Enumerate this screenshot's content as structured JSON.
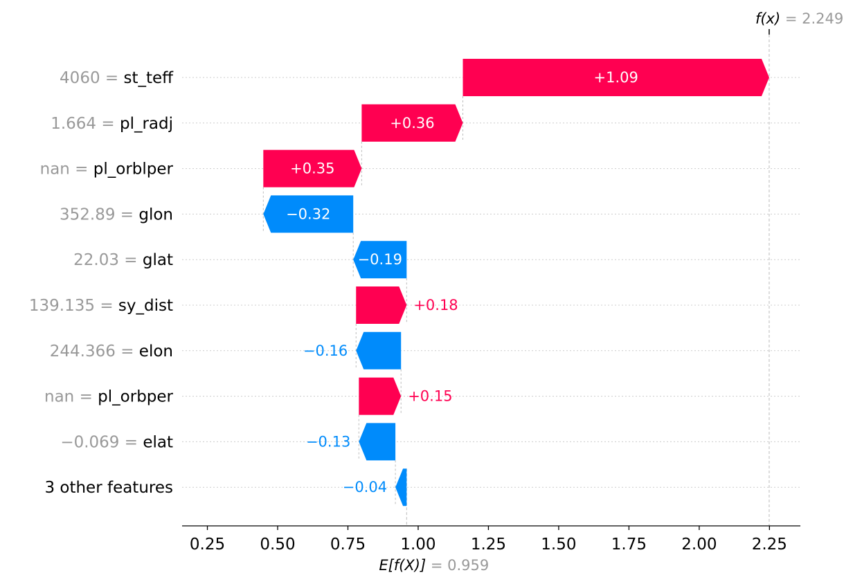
{
  "chart_data": {
    "type": "waterfall",
    "base_value": 0.959,
    "final_value": 2.249,
    "top_label": {
      "name": "f(x)",
      "value_text": "2.249"
    },
    "bottom_label": {
      "name": "E[f(X)]",
      "value_text": "0.959"
    },
    "features": [
      {
        "value_text": "4060",
        "feature": "st_teff",
        "contribution": 1.09,
        "label": "+1.09"
      },
      {
        "value_text": "1.664",
        "feature": "pl_radj",
        "contribution": 0.36,
        "label": "+0.36"
      },
      {
        "value_text": "nan",
        "feature": "pl_orblper",
        "contribution": 0.35,
        "label": "+0.35"
      },
      {
        "value_text": "352.89",
        "feature": "glon",
        "contribution": -0.32,
        "label": "−0.32"
      },
      {
        "value_text": "22.03",
        "feature": "glat",
        "contribution": -0.19,
        "label": "−0.19"
      },
      {
        "value_text": "139.135",
        "feature": "sy_dist",
        "contribution": 0.18,
        "label": "+0.18"
      },
      {
        "value_text": "244.366",
        "feature": "elon",
        "contribution": -0.16,
        "label": "−0.16"
      },
      {
        "value_text": "nan",
        "feature": "pl_orbper",
        "contribution": 0.15,
        "label": "+0.15"
      },
      {
        "value_text": "−0.069",
        "feature": "elat",
        "contribution": -0.13,
        "label": "−0.13"
      },
      {
        "value_text": "",
        "feature": "3 other features",
        "contribution": -0.04,
        "label": "−0.04"
      }
    ],
    "x_ticks": [
      0.25,
      0.5,
      0.75,
      1.0,
      1.25,
      1.5,
      1.75,
      2.0,
      2.25
    ],
    "x_tick_labels": [
      "0.25",
      "0.50",
      "0.75",
      "1.00",
      "1.25",
      "1.50",
      "1.75",
      "2.00",
      "2.25"
    ],
    "xlim": [
      0.16,
      2.36
    ],
    "colors": {
      "positive": "#ff0051",
      "negative": "#008bfb",
      "muted": "#999999",
      "text": "#000000"
    }
  }
}
